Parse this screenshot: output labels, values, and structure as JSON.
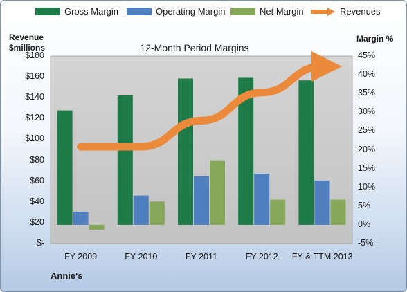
{
  "chart_data": {
    "type": "bar",
    "title": "12-Month Period Margins",
    "categories": [
      "FY 2009",
      "FY 2010",
      "FY 2011",
      "FY 2012",
      "FY & TTM 2013"
    ],
    "series": [
      {
        "name": "Gross Margin",
        "axis": "right",
        "color": "#1e7a46",
        "values": [
          30.5,
          34.5,
          39,
          39.2,
          38.5
        ]
      },
      {
        "name": "Operating Margin",
        "axis": "right",
        "color": "#4f7fbf",
        "values": [
          3.5,
          7.8,
          12.9,
          13.6,
          11.8
        ]
      },
      {
        "name": "Net Margin",
        "axis": "right",
        "color": "#87a85a",
        "values": [
          -1.3,
          6.2,
          17.2,
          6.7,
          6.7
        ]
      },
      {
        "name": "Revenues",
        "type": "line",
        "axis": "left",
        "color": "#ea8a3a",
        "values": [
          93,
          93,
          118,
          145,
          170
        ]
      }
    ],
    "left_axis": {
      "label_line1": "Revenue",
      "label_line2": "$millions",
      "min": 0,
      "max": 180,
      "step": 20,
      "tick_labels": [
        "$-",
        "$20",
        "$40",
        "$60",
        "$80",
        "$100",
        "$120",
        "$140",
        "$160",
        "$180"
      ]
    },
    "right_axis": {
      "label": "Margin %",
      "min": -5,
      "max": 45,
      "step": 5,
      "tick_labels": [
        "-5%",
        "0%",
        "5%",
        "10%",
        "15%",
        "20%",
        "25%",
        "30%",
        "35%",
        "40%",
        "45%"
      ]
    },
    "legend_position": "top",
    "grid": false,
    "company": "Annie's"
  }
}
